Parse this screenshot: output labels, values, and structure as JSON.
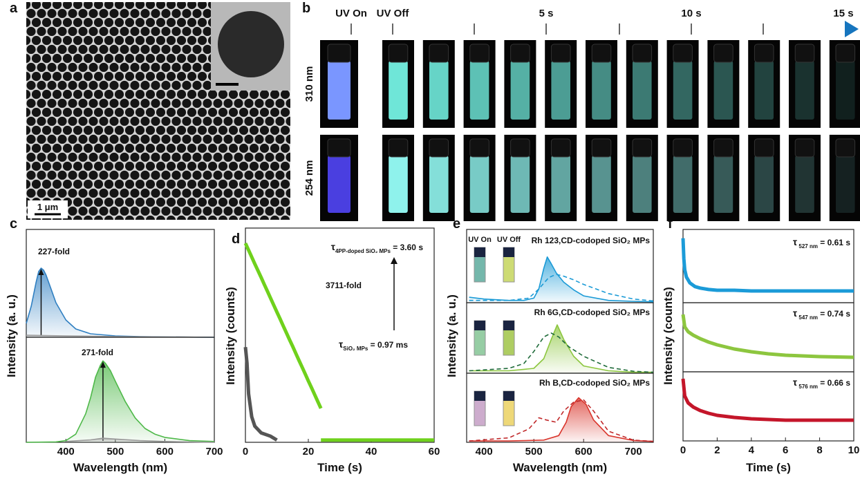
{
  "panel_labels": [
    "a",
    "b",
    "c",
    "d",
    "e",
    "f"
  ],
  "panel_a": {
    "scale_bar": "1 μm"
  },
  "panel_b": {
    "timeline": [
      "UV On",
      "UV Off",
      "5 s",
      "10 s",
      "15 s"
    ],
    "rows": [
      "310 nm",
      "254 nm"
    ]
  },
  "chart_data": [
    {
      "type": "line",
      "xlim": [
        320,
        700
      ],
      "ylim": [
        0,
        1.56
      ],
      "annotations": [
        "227-fold"
      ],
      "series": [
        {
          "color": "#2f7fc1",
          "area": true,
          "x": [
            320,
            330,
            340,
            345,
            350,
            355,
            360,
            370,
            380,
            400,
            420,
            450,
            500,
            550,
            600,
            700
          ],
          "values": [
            0.2,
            0.45,
            0.8,
            0.95,
            1.0,
            0.97,
            0.9,
            0.7,
            0.5,
            0.25,
            0.12,
            0.05,
            0.02,
            0.01,
            0.005,
            0
          ]
        },
        {
          "color": "#999999",
          "area": true,
          "x": [
            320,
            400,
            500,
            600,
            700
          ],
          "values": [
            0.03,
            0.02,
            0.01,
            0.005,
            0
          ]
        }
      ]
    },
    {
      "type": "line",
      "xlim": [
        320,
        700
      ],
      "ylim": [
        0,
        1.29
      ],
      "xticks": [
        400,
        500,
        600,
        700
      ],
      "xlabel": "Wavelength (nm)",
      "ylabel": "Intensity (a. u.)",
      "annotations": [
        "271-fold"
      ],
      "series": [
        {
          "color": "#4db848",
          "area": true,
          "x": [
            320,
            380,
            400,
            420,
            440,
            450,
            460,
            470,
            475,
            480,
            490,
            500,
            520,
            540,
            560,
            580,
            600,
            650,
            700
          ],
          "values": [
            0,
            0.005,
            0.02,
            0.1,
            0.35,
            0.55,
            0.8,
            0.95,
            1.0,
            0.97,
            0.88,
            0.75,
            0.5,
            0.3,
            0.17,
            0.1,
            0.06,
            0.02,
            0.01
          ]
        },
        {
          "color": "#999999",
          "area": true,
          "x": [
            400,
            450,
            475,
            500,
            550,
            600,
            700
          ],
          "values": [
            0.01,
            0.03,
            0.05,
            0.04,
            0.02,
            0.01,
            0
          ]
        }
      ]
    },
    {
      "type": "line",
      "log_y": true,
      "xlim": [
        0,
        60
      ],
      "ylim": [
        1,
        10000
      ],
      "xticks": [
        0,
        20,
        40,
        60
      ],
      "xlabel": "Time (s)",
      "ylabel": "Intensity (counts)",
      "annotations": [
        {
          "main": "τ",
          "sub": "4PP-doped SiO₂ MPs",
          "tail": " = 3.60 s"
        },
        "3711-fold",
        {
          "main": "τ",
          "sub": "SiO₂ MPs",
          "tail": " = 0.97 ms"
        }
      ],
      "series": [
        {
          "color": "#6fd11c",
          "x": [
            0,
            1,
            2,
            3,
            4,
            5,
            6,
            7,
            8,
            9,
            10,
            11,
            12,
            13,
            14,
            15,
            16,
            17,
            18,
            19,
            20,
            21,
            22,
            23,
            24
          ],
          "values": [
            5200,
            3870,
            2880,
            2140,
            1600,
            1190,
            885,
            658,
            490,
            365,
            271,
            202,
            150,
            112,
            83,
            62,
            46,
            34,
            25.5,
            19,
            14,
            10.5,
            7.8,
            5.8,
            4.3
          ]
        },
        {
          "color": "#6fd11c",
          "x": [
            24,
            30,
            36,
            42,
            48,
            54,
            60
          ],
          "values": [
            1.1,
            1.1,
            1.1,
            1.1,
            1.1,
            1.1,
            1.1
          ]
        },
        {
          "color": "#555555",
          "x": [
            0,
            0.5,
            1,
            2,
            3,
            5,
            8,
            10
          ],
          "values": [
            60,
            30,
            8,
            3,
            2,
            1.5,
            1.3,
            1.1
          ]
        }
      ]
    },
    {
      "type": "line",
      "xlim": [
        365,
        740
      ],
      "ylim": [
        0,
        1.6
      ],
      "vial_labels": [
        "UV On",
        "UV Off"
      ],
      "vial_colors": [
        "#3a9a88",
        "#b8cc3a"
      ],
      "annotations": [
        "Rh 123,CD-codoped SiO₂ MPs"
      ],
      "series": [
        {
          "color": "#1a9ad6",
          "area": true,
          "x": [
            370,
            400,
            450,
            480,
            500,
            510,
            520,
            527,
            535,
            545,
            560,
            580,
            600,
            650,
            700,
            740
          ],
          "values": [
            0.12,
            0.08,
            0.05,
            0.05,
            0.1,
            0.3,
            0.75,
            1.0,
            0.85,
            0.65,
            0.45,
            0.28,
            0.15,
            0.05,
            0.03,
            0.02
          ]
        },
        {
          "color": "#1a9ad6",
          "dash": true,
          "x": [
            370,
            450,
            490,
            510,
            530,
            545,
            560,
            580,
            600,
            650,
            700,
            740
          ],
          "values": [
            0.05,
            0.05,
            0.1,
            0.3,
            0.55,
            0.62,
            0.58,
            0.5,
            0.4,
            0.2,
            0.08,
            0.04
          ]
        }
      ]
    },
    {
      "type": "line",
      "xlim": [
        365,
        740
      ],
      "ylim": [
        0,
        1.46
      ],
      "vial_colors": [
        "#6ab87e",
        "#8cb820"
      ],
      "annotations": [
        "Rh 6G,CD-codoped SiO₂ MPs"
      ],
      "series": [
        {
          "color": "#8cc63e",
          "area": true,
          "x": [
            370,
            450,
            500,
            520,
            535,
            547,
            560,
            580,
            600,
            650,
            700,
            740
          ],
          "values": [
            0.05,
            0.05,
            0.1,
            0.3,
            0.7,
            1.0,
            0.7,
            0.35,
            0.15,
            0.05,
            0.02,
            0.02
          ]
        },
        {
          "color": "#1f6b3a",
          "dash": true,
          "x": [
            370,
            450,
            480,
            500,
            520,
            535,
            550,
            570,
            600,
            650,
            700,
            740
          ],
          "values": [
            0.05,
            0.1,
            0.2,
            0.45,
            0.75,
            0.83,
            0.75,
            0.55,
            0.35,
            0.12,
            0.04,
            0.02
          ]
        }
      ]
    },
    {
      "type": "line",
      "xlim": [
        365,
        740
      ],
      "ylim": [
        0,
        1.55
      ],
      "xticks": [
        400,
        500,
        600,
        700
      ],
      "xlabel": "Wavelength (nm)",
      "ylabel": "Intensity (a. u.)",
      "vial_colors": [
        "#b88ab8",
        "#e8c840"
      ],
      "annotations": [
        "Rh B,CD-codoped SiO₂ MPs"
      ],
      "series": [
        {
          "color": "#d9342b",
          "area": true,
          "x": [
            370,
            450,
            520,
            550,
            565,
            575,
            590,
            605,
            620,
            650,
            700,
            740
          ],
          "values": [
            0.03,
            0.03,
            0.05,
            0.15,
            0.45,
            0.8,
            1.0,
            0.85,
            0.5,
            0.15,
            0.04,
            0.02
          ]
        },
        {
          "color": "#c0282a",
          "dash": true,
          "x": [
            370,
            450,
            490,
            510,
            525,
            545,
            560,
            580,
            600,
            620,
            650,
            700,
            740
          ],
          "values": [
            0.03,
            0.1,
            0.3,
            0.55,
            0.5,
            0.45,
            0.7,
            0.9,
            0.95,
            0.7,
            0.25,
            0.05,
            0.02
          ]
        }
      ]
    },
    {
      "type": "line",
      "xlim": [
        0,
        10
      ],
      "ylim": [
        0,
        1
      ],
      "annotations": [
        {
          "main": "τ",
          "sub": " 527 nm",
          "tail": " = 0.61 s"
        }
      ],
      "series": [
        {
          "color": "#1b9bd8",
          "x": [
            0,
            0.05,
            0.1,
            0.2,
            0.4,
            0.7,
            1,
            1.5,
            2,
            3,
            4,
            6,
            8,
            10
          ],
          "values": [
            0.88,
            0.6,
            0.45,
            0.35,
            0.27,
            0.22,
            0.2,
            0.18,
            0.17,
            0.17,
            0.16,
            0.16,
            0.16,
            0.16
          ]
        }
      ]
    },
    {
      "type": "line",
      "xlim": [
        0,
        10
      ],
      "ylim": [
        0,
        1
      ],
      "annotations": [
        {
          "main": "τ",
          "sub": " 547 nm",
          "tail": " = 0.74 s"
        }
      ],
      "series": [
        {
          "color": "#8dc63f",
          "x": [
            0,
            0.1,
            0.3,
            0.6,
            1,
            1.5,
            2,
            3,
            4,
            5,
            6,
            8,
            10
          ],
          "values": [
            0.83,
            0.65,
            0.58,
            0.53,
            0.48,
            0.43,
            0.39,
            0.33,
            0.29,
            0.26,
            0.24,
            0.22,
            0.21
          ]
        }
      ]
    },
    {
      "type": "line",
      "xlim": [
        0,
        10
      ],
      "ylim": [
        0,
        1
      ],
      "xticks": [
        0,
        2,
        4,
        6,
        8,
        10
      ],
      "xlabel": "Time (s)",
      "ylabel": "Intensity (counts)",
      "annotations": [
        {
          "main": "τ",
          "sub": " 576 nm",
          "tail": " = 0.66 s"
        }
      ],
      "series": [
        {
          "color": "#c4162a",
          "x": [
            0,
            0.1,
            0.3,
            0.6,
            1,
            1.5,
            2,
            3,
            4,
            6,
            8,
            10
          ],
          "values": [
            0.9,
            0.65,
            0.55,
            0.49,
            0.44,
            0.4,
            0.37,
            0.34,
            0.32,
            0.3,
            0.3,
            0.3
          ]
        }
      ]
    }
  ]
}
